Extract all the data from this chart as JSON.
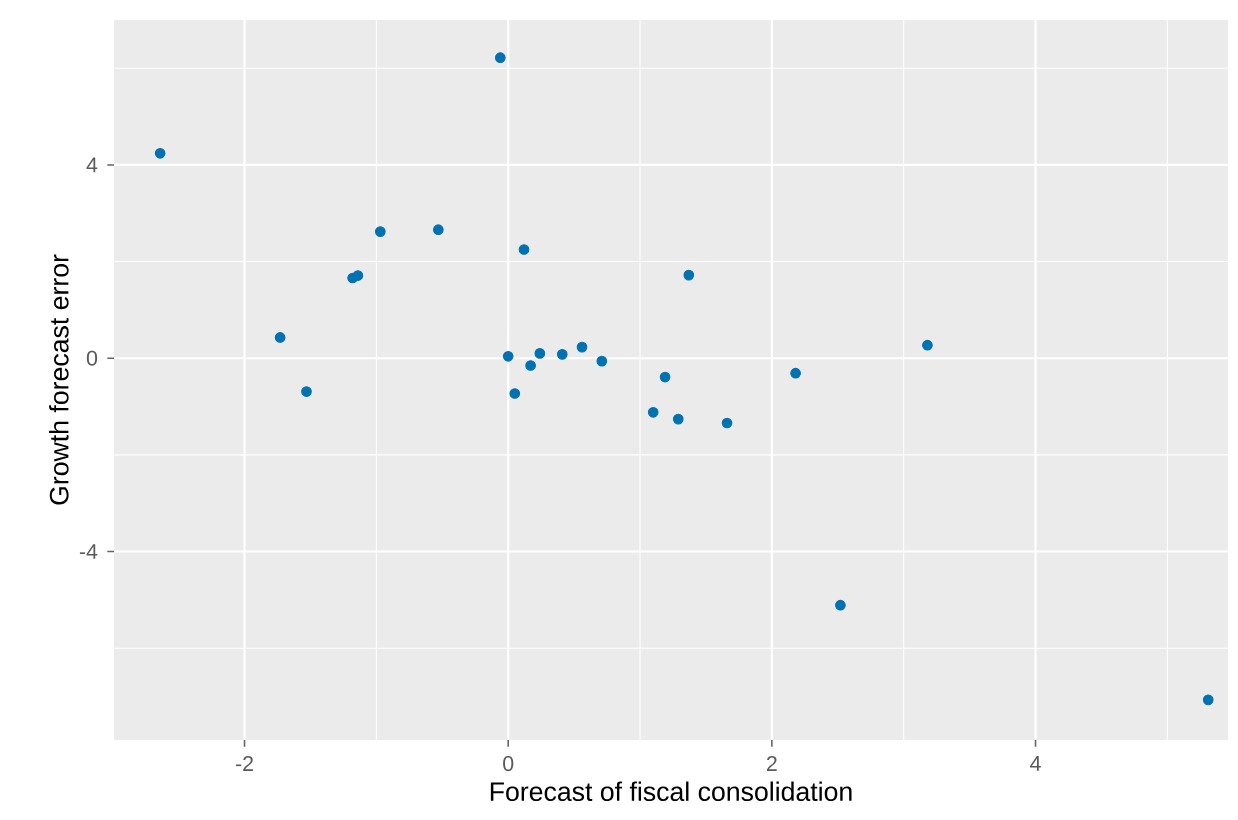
{
  "chart_data": {
    "type": "scatter",
    "xlabel": "Forecast of fiscal consolidation",
    "ylabel": "Growth forecast error",
    "x": [
      -2.64,
      -0.06,
      -1.73,
      -1.53,
      -1.18,
      -1.14,
      -0.97,
      -0.53,
      0.12,
      0.0,
      0.05,
      0.17,
      0.24,
      0.41,
      0.56,
      0.71,
      1.1,
      1.19,
      1.29,
      1.37,
      1.66,
      2.18,
      3.18,
      2.52,
      5.31
    ],
    "values": [
      4.24,
      6.22,
      0.43,
      -0.69,
      1.66,
      1.71,
      2.62,
      2.66,
      2.25,
      0.04,
      -0.73,
      -0.15,
      0.1,
      0.08,
      0.23,
      -0.06,
      -1.12,
      -0.39,
      -1.26,
      1.72,
      -1.34,
      -0.31,
      0.27,
      -5.11,
      -7.07
    ],
    "color": "#0072b2",
    "marker": "circle",
    "grid": true,
    "xlim": [
      -2.99,
      5.46
    ],
    "ylim": [
      -7.9,
      7.0
    ],
    "xticks": [
      -2,
      0,
      2,
      4
    ],
    "yticks": [
      -4,
      0,
      4
    ]
  }
}
